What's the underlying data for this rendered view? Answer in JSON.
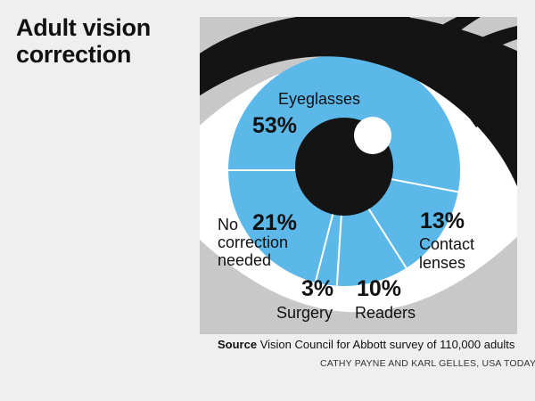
{
  "title": {
    "line1": "Adult vision",
    "line2": "correction"
  },
  "colors": {
    "iris": "#5bb8e8",
    "sclera": "#ffffff",
    "background": "#c8c8c8",
    "pupil": "#141414",
    "lash": "#141414",
    "divider": "#ffffff"
  },
  "chart_data": {
    "type": "pie",
    "title": "Adult vision correction",
    "unit": "%",
    "categories": [
      "Eyeglasses",
      "Contact lenses",
      "Readers",
      "Surgery",
      "No correction needed"
    ],
    "values": [
      53,
      13,
      10,
      3,
      21
    ],
    "labels": {
      "eyeglasses": {
        "name": "Eyeglasses",
        "pct": "53%"
      },
      "contacts": {
        "name1": "Contact",
        "name2": "lenses",
        "pct": "13%"
      },
      "readers": {
        "name": "Readers",
        "pct": "10%"
      },
      "surgery": {
        "name": "Surgery",
        "pct": "3%"
      },
      "none": {
        "name1": "No",
        "name2": "correction",
        "name3": "needed",
        "pct": "21%"
      }
    }
  },
  "source": {
    "label": "Source",
    "text": "Vision Council for Abbott survey of 110,000 adults"
  },
  "credit": "CATHY PAYNE AND KARL GELLES, USA TODAY"
}
